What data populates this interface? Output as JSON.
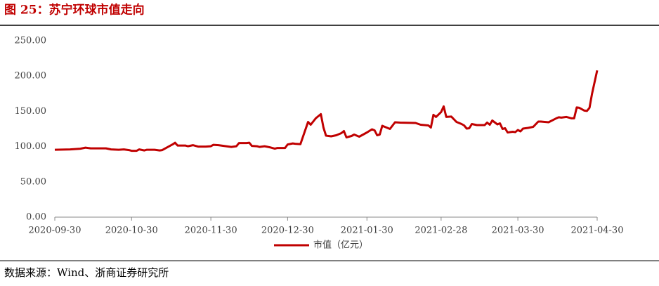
{
  "chart_data": {
    "type": "line",
    "title": "图 25：苏宁环球市值走向",
    "source": "数据来源：Wind、浙商证券研究所",
    "x": [
      "2020-09-30",
      "2020-10-06",
      "2020-10-10",
      "2020-10-12",
      "2020-10-14",
      "2020-10-17",
      "2020-10-20",
      "2020-10-22",
      "2020-10-25",
      "2020-10-27",
      "2020-10-29",
      "2020-10-30",
      "2020-11-01",
      "2020-11-02",
      "2020-11-04",
      "2020-11-05",
      "2020-11-08",
      "2020-11-10",
      "2020-11-11",
      "2020-11-13",
      "2020-11-15",
      "2020-11-16",
      "2020-11-17",
      "2020-11-20",
      "2020-11-21",
      "2020-11-23",
      "2020-11-25",
      "2020-11-28",
      "2020-11-30",
      "2020-12-01",
      "2020-12-03",
      "2020-12-06",
      "2020-12-08",
      "2020-12-10",
      "2020-12-11",
      "2020-12-14",
      "2020-12-15",
      "2020-12-16",
      "2020-12-18",
      "2020-12-19",
      "2020-12-21",
      "2020-12-23",
      "2020-12-25",
      "2020-12-26",
      "2020-12-29",
      "2020-12-30",
      "2021-01-01",
      "2021-01-02",
      "2021-01-04",
      "2021-01-07",
      "2021-01-08",
      "2021-01-10",
      "2021-01-12",
      "2021-01-13",
      "2021-01-14",
      "2021-01-16",
      "2021-01-18",
      "2021-01-20",
      "2021-01-21",
      "2021-01-22",
      "2021-01-24",
      "2021-01-25",
      "2021-01-27",
      "2021-01-28",
      "2021-01-30",
      "2021-02-01",
      "2021-02-02",
      "2021-02-03",
      "2021-02-04",
      "2021-02-05",
      "2021-02-08",
      "2021-02-10",
      "2021-02-12",
      "2021-02-18",
      "2021-02-20",
      "2021-02-23",
      "2021-02-24",
      "2021-02-25",
      "2021-02-26",
      "2021-02-28",
      "2021-03-01",
      "2021-03-02",
      "2021-03-04",
      "2021-03-06",
      "2021-03-08",
      "2021-03-09",
      "2021-03-10",
      "2021-03-11",
      "2021-03-12",
      "2021-03-14",
      "2021-03-17",
      "2021-03-18",
      "2021-03-19",
      "2021-03-20",
      "2021-03-22",
      "2021-03-23",
      "2021-03-24",
      "2021-03-25",
      "2021-03-26",
      "2021-03-28",
      "2021-03-29",
      "2021-03-30",
      "2021-03-31",
      "2021-04-01",
      "2021-04-03",
      "2021-04-05",
      "2021-04-07",
      "2021-04-08",
      "2021-04-11",
      "2021-04-14",
      "2021-04-15",
      "2021-04-16",
      "2021-04-18",
      "2021-04-20",
      "2021-04-21",
      "2021-04-22",
      "2021-04-23",
      "2021-04-25",
      "2021-04-26",
      "2021-04-27",
      "2021-04-28",
      "2021-04-30"
    ],
    "series": [
      {
        "name": "市值（亿元）",
        "color": "#c00000",
        "values": [
          95.5,
          96,
          97,
          98.5,
          97.5,
          97.5,
          97.5,
          96,
          95.5,
          96,
          95,
          94,
          94,
          96,
          94.5,
          95.5,
          95.5,
          94.5,
          95,
          99,
          103,
          105.5,
          101.5,
          101.5,
          100.5,
          102,
          100,
          100,
          100.5,
          102.5,
          102,
          100.5,
          99.5,
          100.5,
          105,
          105,
          105.5,
          101,
          100.5,
          99.5,
          100.5,
          99,
          97,
          98,
          98,
          103,
          104.5,
          104,
          103.5,
          135,
          131,
          140,
          146,
          127,
          115.5,
          114.5,
          116,
          119,
          122,
          113,
          115,
          117,
          114,
          116,
          120,
          124.5,
          123,
          116,
          117,
          129.5,
          125,
          134.5,
          134,
          133.5,
          131,
          130,
          127,
          145,
          142,
          149,
          157,
          142,
          142.5,
          135,
          132,
          130,
          125.5,
          126,
          132,
          130.5,
          130.5,
          134,
          131,
          137,
          131.5,
          133,
          125,
          126,
          120,
          121,
          120.5,
          123.5,
          121.5,
          125.5,
          126.5,
          128,
          135.5,
          135.5,
          134.5,
          140,
          141.5,
          141,
          142,
          140,
          140,
          155.5,
          155,
          151,
          150.5,
          155,
          175,
          208
        ]
      }
    ],
    "xlim": [
      "2020-09-30",
      "2021-04-30"
    ],
    "xticks": [
      "2020-09-30",
      "2020-10-30",
      "2020-11-30",
      "2020-12-30",
      "2021-01-30",
      "2021-02-28",
      "2021-03-30",
      "2021-04-30"
    ],
    "ylim": [
      0,
      250
    ],
    "yticks": [
      {
        "value": 0,
        "label": "0.00"
      },
      {
        "value": 50,
        "label": "50.00"
      },
      {
        "value": 100,
        "label": "100.00"
      },
      {
        "value": 150,
        "label": "150.00"
      },
      {
        "value": 200,
        "label": "200.00"
      },
      {
        "value": 250,
        "label": "250.00"
      }
    ],
    "grid": false,
    "legend": "bottom"
  }
}
